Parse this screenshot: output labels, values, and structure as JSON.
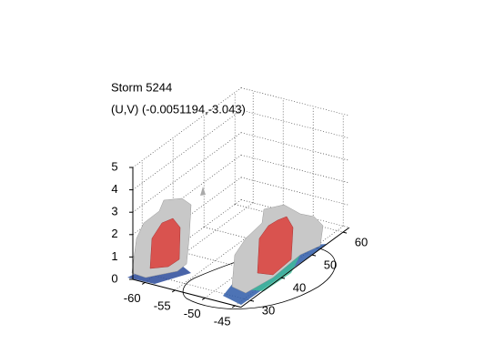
{
  "chart_data": {
    "type": "isosurface3d",
    "title": "Storm 5244",
    "subtitle": "(U,V) (-0.0051194,-3.043)",
    "xlim": [
      -62,
      -44
    ],
    "xticks": [
      -60,
      -55,
      -50,
      -45
    ],
    "ylim": [
      27,
      62
    ],
    "yticks": [
      30,
      40,
      50,
      60
    ],
    "zlim": [
      0,
      5
    ],
    "zticks": [
      0,
      1,
      2,
      3,
      4,
      5
    ],
    "grid": true
  }
}
